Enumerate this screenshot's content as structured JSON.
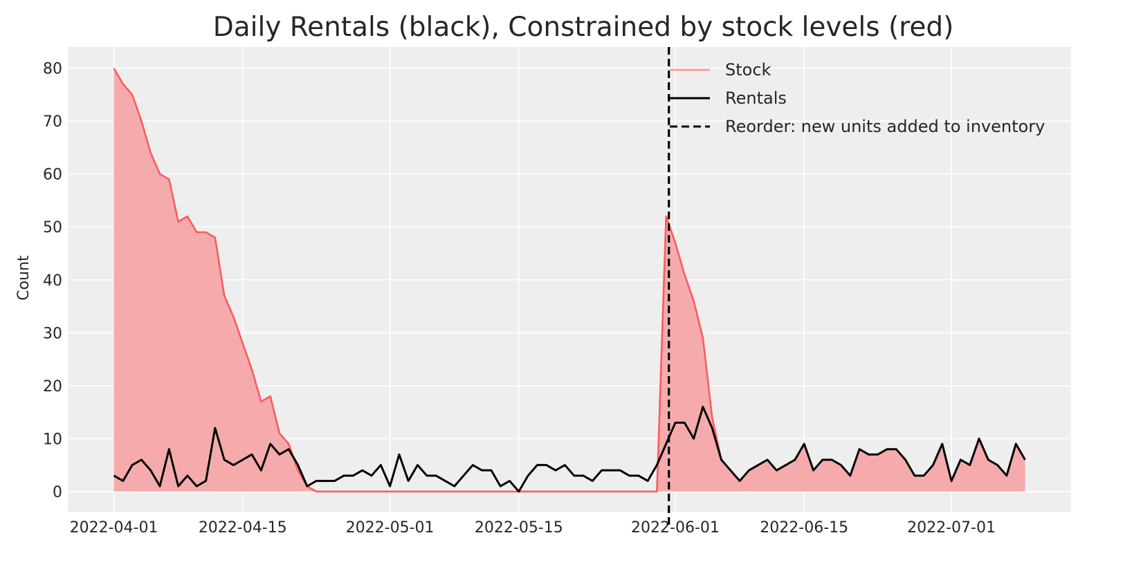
{
  "chart_data": {
    "type": "line",
    "title": "Daily Rentals (black), Constrained by stock levels (red)",
    "xlabel": "",
    "ylabel": "Count",
    "x_start": "2022-04-01",
    "x_end": "2022-07-10",
    "xlim": [
      "2022-03-27",
      "2022-07-14"
    ],
    "ylim": [
      -3.8,
      84
    ],
    "xticks": [
      "2022-04-01",
      "2022-04-15",
      "2022-05-01",
      "2022-05-15",
      "2022-06-01",
      "2022-06-15",
      "2022-07-01"
    ],
    "yticks": [
      0,
      10,
      20,
      30,
      40,
      50,
      60,
      70,
      80
    ],
    "grid": true,
    "legend_position": "top-right",
    "reorder_date": "2022-05-31",
    "series": [
      {
        "name": "Stock",
        "color": "#fa5c5c",
        "fill_color": "#f4a6a6",
        "style": "area",
        "values": [
          80,
          77,
          75,
          70,
          64,
          60,
          59,
          51,
          52,
          49,
          49,
          48,
          37,
          33,
          28,
          23,
          17,
          18,
          11,
          9,
          4,
          1,
          0,
          0,
          0,
          0,
          0,
          0,
          0,
          0,
          0,
          0,
          0,
          0,
          0,
          0,
          0,
          0,
          0,
          0,
          0,
          0,
          0,
          0,
          0,
          0,
          0,
          0,
          0,
          0,
          0,
          0,
          0,
          0,
          0,
          0,
          0,
          0,
          0,
          0,
          52,
          47,
          41,
          36,
          29,
          14,
          6,
          4,
          2,
          4,
          5,
          6,
          4,
          5,
          6,
          9,
          4,
          6,
          6,
          5,
          3,
          8,
          7,
          7,
          8,
          8,
          6,
          3,
          3,
          5,
          9,
          2,
          6,
          5,
          10,
          6,
          5,
          3,
          9,
          6
        ]
      },
      {
        "name": "Rentals",
        "color": "#000000",
        "style": "line",
        "values": [
          3,
          2,
          5,
          6,
          4,
          1,
          8,
          1,
          3,
          1,
          2,
          12,
          6,
          5,
          6,
          7,
          4,
          9,
          7,
          8,
          5,
          1,
          2,
          2,
          2,
          3,
          3,
          4,
          3,
          5,
          1,
          7,
          2,
          5,
          3,
          3,
          2,
          1,
          3,
          5,
          4,
          4,
          1,
          2,
          0,
          3,
          5,
          5,
          4,
          5,
          3,
          3,
          2,
          4,
          4,
          4,
          3,
          3,
          2,
          5,
          9,
          13,
          13,
          10,
          16,
          12,
          6,
          4,
          2,
          4,
          5,
          6,
          4,
          5,
          6,
          9,
          4,
          6,
          6,
          5,
          3,
          8,
          7,
          7,
          8,
          8,
          6,
          3,
          3,
          5,
          9,
          2,
          6,
          5,
          10,
          6,
          5,
          3,
          9,
          6
        ]
      },
      {
        "name": "Reorder: new units added to inventory",
        "color": "#000000",
        "style": "vline-dashed"
      }
    ]
  }
}
